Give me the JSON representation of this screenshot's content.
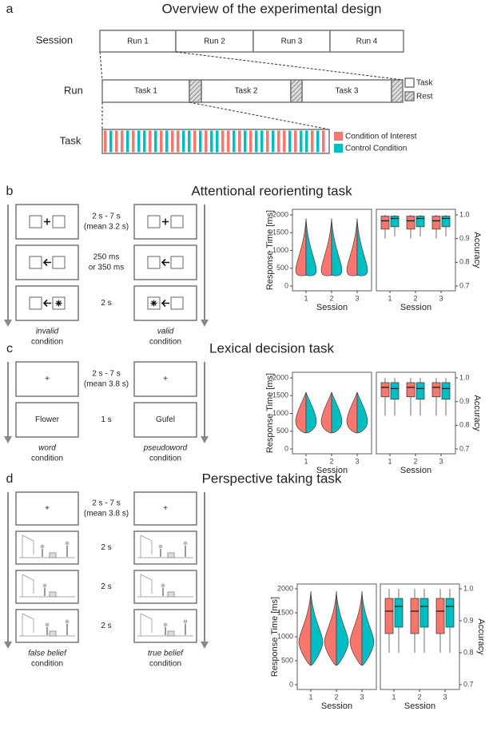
{
  "panel_a": {
    "label": "a",
    "title": "Overview of the experimental design",
    "rows": [
      "Session",
      "Run",
      "Task"
    ],
    "runs": [
      "Run 1",
      "Run 2",
      "Run 3",
      "Run 4"
    ],
    "tasks": [
      "Task 1",
      "Task 2",
      "Task 3"
    ],
    "run_legend": [
      "Task",
      "Rest"
    ],
    "task_legend": [
      "Condition of Interest",
      "Control Condition"
    ]
  },
  "panel_b": {
    "label": "b",
    "title": "Attentional reorienting task",
    "timings": [
      [
        "2 s - 7 s",
        "(mean 3.2 s)"
      ],
      [
        "250 ms",
        "or 350 ms"
      ],
      [
        "2 s"
      ]
    ],
    "conditions": [
      [
        "invalid",
        "condition"
      ],
      [
        "valid",
        "condition"
      ]
    ]
  },
  "panel_c": {
    "label": "c",
    "title": "Lexical decision task",
    "fixation": "+",
    "words": [
      "Flower",
      "Gufel"
    ],
    "timings": [
      [
        "2 s - 7 s",
        "(mean 3.8 s)"
      ],
      [
        "1 s"
      ]
    ],
    "conditions": [
      [
        "word",
        "condition"
      ],
      [
        "pseudoword",
        "condition"
      ]
    ]
  },
  "panel_d": {
    "label": "d",
    "title": "Perspective taking task",
    "fixation": "+",
    "timings": [
      [
        "2 s - 7 s",
        "(mean 3.8 s)"
      ],
      [
        "2 s"
      ],
      [
        "2 s"
      ],
      [
        "2 s"
      ]
    ],
    "conditions": [
      [
        "false belief",
        "condition"
      ],
      [
        "true belief",
        "condition"
      ]
    ]
  },
  "plots": {
    "y_label": "Response Time [ms]",
    "y2_label": "Accuracy",
    "x_label": "Session",
    "sessions": [
      "1",
      "2",
      "3"
    ],
    "ylim": [
      0,
      2000
    ],
    "yticks": [
      0,
      500,
      1000,
      1500,
      2000
    ],
    "y2lim": [
      0.7,
      1
    ],
    "y2ticks": [
      0.7,
      0.8,
      0.9,
      {
        "value": 1,
        "label": "1.0"
      }
    ]
  }
}
